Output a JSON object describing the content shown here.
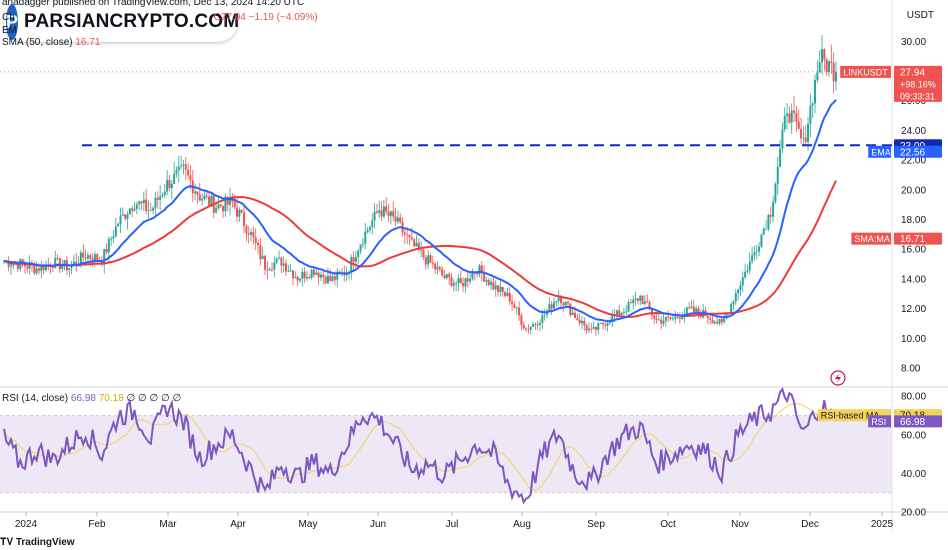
{
  "header": {
    "line1_prefix": "Ch",
    "published_by": "anadagger published on TradingView.com, Dec 13, 2024 14:20 UTC",
    "price_change": "C27.94 −1.19 (−4.09%)",
    "ema_label": "EM",
    "sma_label": "SMA (50, close)",
    "sma_value": "16.71",
    "rsi_label": "RSI (14, close)",
    "rsi_value": "66.98",
    "rsi_ma_value": "70.18",
    "rsi_extra": "∅ ∅ ∅ ∅ ∅"
  },
  "logo": {
    "badge": "P",
    "text": "PARSIANCRYPTO.COM"
  },
  "currency": "USDT",
  "footer_brand": "TradingView",
  "colors": {
    "up": "#26a69a",
    "down": "#ef5350",
    "ema": "#2962ff",
    "sma": "#ef3a3a",
    "rsi": "#7e57c2",
    "rsi_ma": "#f5d35a",
    "level": "#1328b8",
    "rsi_band": "#ede7f6"
  },
  "price_labels": [
    {
      "symbol": "LINKUSDT",
      "value": "27.94",
      "change": "+98.16%",
      "countdown": "09:33:31",
      "color": "#ef5350"
    },
    {
      "symbol": "",
      "value": "23.00",
      "color": "#1328b8"
    },
    {
      "symbol": "EMA",
      "value": "22.56",
      "color": "#2962ff"
    },
    {
      "symbol": "SMA:MA",
      "value": "16.71",
      "color": "#ef5350"
    }
  ],
  "rsi_labels": [
    {
      "symbol": "RSI-based MA",
      "value": "70.18",
      "color": "#f5d35a"
    },
    {
      "symbol": "RSI",
      "value": "66.98",
      "color": "#7e57c2"
    }
  ],
  "chart_data": [
    {
      "type": "candlestick",
      "title": "LINKUSDT",
      "ylim": [
        7,
        31
      ],
      "y_ticks": [
        "8.00",
        "10.00",
        "12.00",
        "14.00",
        "16.00",
        "18.00",
        "20.00",
        "22.00",
        "24.00",
        "26.00",
        "28.00",
        "30.00"
      ],
      "x_tick_labels": [
        "2024",
        "Feb",
        "Mar",
        "Apr",
        "May",
        "Jun",
        "Jul",
        "Aug",
        "Sep",
        "Oct",
        "Nov",
        "Dec",
        "2025"
      ],
      "horizontal_level": 23.0,
      "weekly_close_path": [
        15.2,
        15.0,
        14.7,
        15.1,
        14.8,
        15.6,
        15.3,
        17.8,
        19.2,
        18.6,
        20.4,
        21.3,
        19.6,
        18.9,
        19.1,
        17.3,
        14.9,
        15.2,
        14.1,
        14.6,
        13.9,
        14.5,
        16.8,
        18.7,
        17.9,
        16.3,
        15.2,
        14.1,
        13.6,
        14.7,
        13.5,
        12.7,
        10.6,
        11.4,
        12.9,
        11.5,
        10.4,
        11.2,
        11.9,
        12.8,
        11.2,
        11.3,
        11.9,
        11.6,
        10.9,
        13.4,
        15.8,
        18.6,
        25.6,
        23.0,
        28.9,
        27.94
      ],
      "last_close": 27.94,
      "series": [
        {
          "name": "EMA",
          "last": 22.56
        },
        {
          "name": "SMA (50, close)",
          "last": 16.71
        }
      ]
    },
    {
      "type": "line",
      "title": "RSI (14, close)",
      "ylim": [
        20,
        85
      ],
      "y_ticks": [
        "20.00",
        "40.00",
        "60.00",
        "80.00"
      ],
      "band": [
        30,
        70
      ],
      "weekly_rsi_path": [
        58,
        45,
        52,
        47,
        55,
        62,
        50,
        70,
        72,
        58,
        75,
        67,
        48,
        55,
        60,
        44,
        30,
        45,
        38,
        46,
        40,
        55,
        71,
        68,
        55,
        42,
        45,
        39,
        47,
        55,
        50,
        33,
        27,
        49,
        61,
        40,
        35,
        50,
        60,
        64,
        45,
        50,
        55,
        52,
        41,
        60,
        68,
        72,
        82,
        60,
        76,
        66.98
      ],
      "series": [
        {
          "name": "RSI",
          "last": 66.98
        },
        {
          "name": "RSI-based MA",
          "last": 70.18
        }
      ]
    }
  ]
}
